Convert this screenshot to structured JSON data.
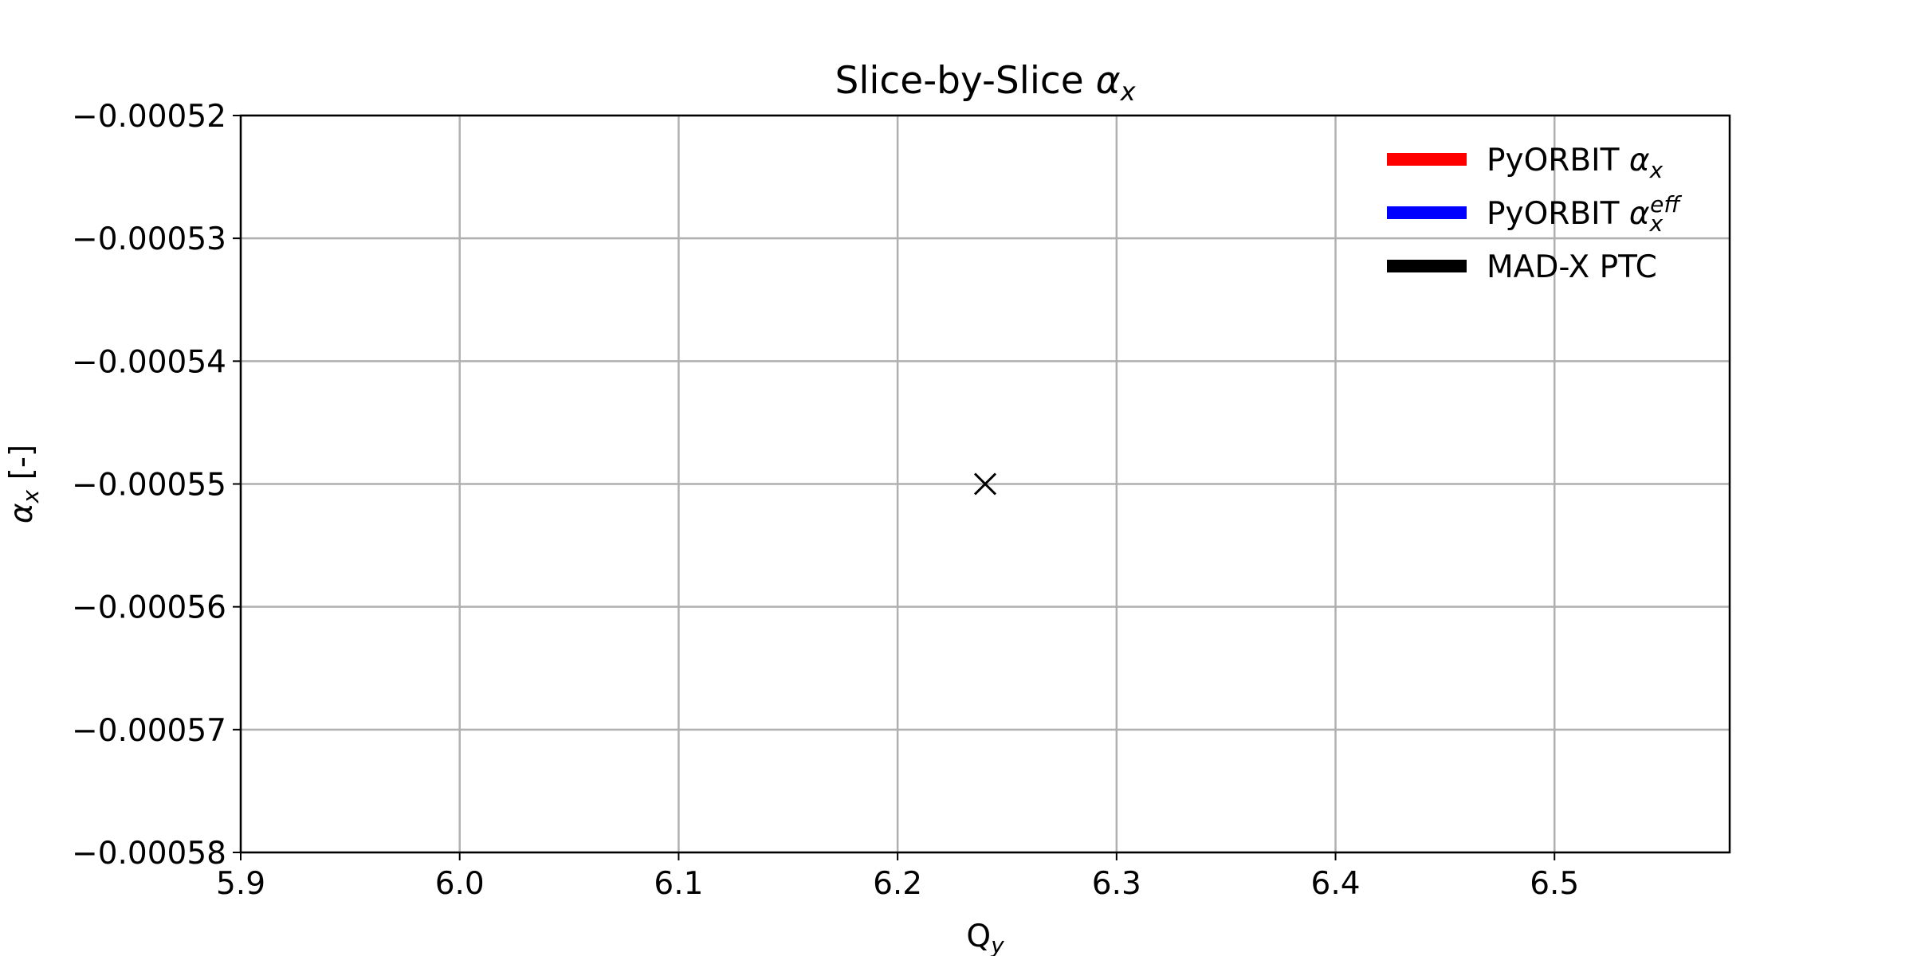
{
  "chart_data": {
    "type": "scatter",
    "title": {
      "text": "Slice-by-Slice ",
      "math": "α",
      "sub": "x"
    },
    "xlabel": {
      "text": "Q",
      "sub": "y"
    },
    "ylabel": {
      "math": "α",
      "sub": "x",
      "text": " [-]"
    },
    "xlim": [
      5.9,
      6.58
    ],
    "ylim": [
      -0.00058,
      -0.00052
    ],
    "xticks": [
      5.9,
      6.0,
      6.1,
      6.2,
      6.3,
      6.4,
      6.5
    ],
    "xtick_labels": [
      "5.9",
      "6.0",
      "6.1",
      "6.2",
      "6.3",
      "6.4",
      "6.5"
    ],
    "yticks": [
      -0.00052,
      -0.00053,
      -0.00054,
      -0.00055,
      -0.00056,
      -0.00057,
      -0.00058
    ],
    "ytick_labels": [
      "−0.00052",
      "−0.00053",
      "−0.00054",
      "−0.00055",
      "−0.00056",
      "−0.00057",
      "−0.00058"
    ],
    "grid": true,
    "legend_position": "top-right",
    "legend": [
      {
        "text": "PyORBIT ",
        "math": "α",
        "sub": "x",
        "sup": "",
        "color": "#ff0000"
      },
      {
        "text": "PyORBIT ",
        "math": "α",
        "sub": "x",
        "sup": "eff",
        "color": "#0000ff"
      },
      {
        "text": "MAD-X PTC",
        "math": "",
        "sub": "",
        "sup": "",
        "color": "#000000"
      }
    ],
    "series": [
      {
        "name": "MAD-X PTC",
        "marker": "x",
        "color": "#000000",
        "points": [
          {
            "x": 6.24,
            "y": -0.00055
          }
        ]
      }
    ]
  }
}
